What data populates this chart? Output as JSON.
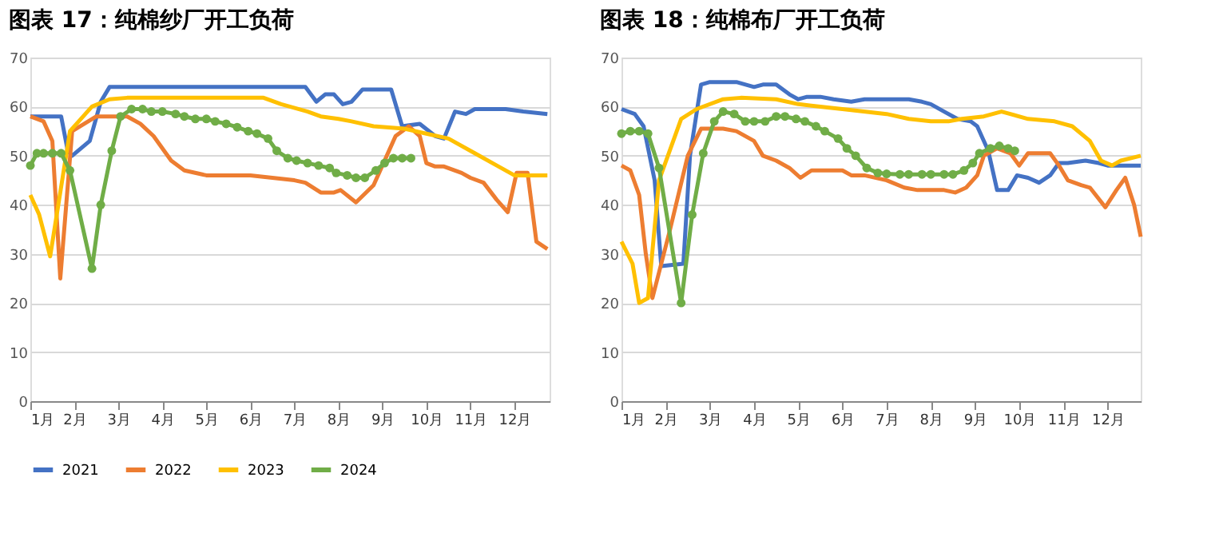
{
  "chart_data": [
    {
      "type": "line",
      "title": "图表 17：纯棉纱厂开工负荷",
      "xlim": [
        1,
        12.8
      ],
      "xticks": [
        {
          "value": 1,
          "label": "1月"
        },
        {
          "value": 2,
          "label": "2月"
        },
        {
          "value": 3,
          "label": "3月"
        },
        {
          "value": 4,
          "label": "4月"
        },
        {
          "value": 5,
          "label": "5月"
        },
        {
          "value": 6,
          "label": "6月"
        },
        {
          "value": 7,
          "label": "7月"
        },
        {
          "value": 8,
          "label": "8月"
        },
        {
          "value": 9,
          "label": "9月"
        },
        {
          "value": 10,
          "label": "10月"
        },
        {
          "value": 11,
          "label": "11月"
        },
        {
          "value": 12,
          "label": "12月"
        }
      ],
      "ylim": [
        0,
        70
      ],
      "yticks": [
        0,
        10,
        20,
        30,
        40,
        50,
        60,
        70
      ],
      "grid": "y",
      "legend": "bottom",
      "line_style": "solid",
      "series": [
        {
          "name": "2021",
          "color": "#4472c4",
          "x": [
            1,
            1.7,
            1.85,
            1.95,
            2.35,
            2.6,
            2.8,
            4,
            5,
            6,
            7.25,
            7.5,
            7.7,
            7.9,
            8.1,
            8.3,
            8.55,
            9.2,
            9.45,
            9.85,
            10.2,
            10.4,
            10.65,
            10.9,
            11.1,
            11.8,
            12.2,
            12.75
          ],
          "values": [
            58,
            58,
            51,
            50,
            53,
            61,
            64,
            64,
            64,
            64,
            64,
            61,
            62.5,
            62.5,
            60.5,
            61,
            63.5,
            63.5,
            56,
            56.5,
            54,
            53.5,
            59,
            58.5,
            59.5,
            59.5,
            59,
            58.5
          ]
        },
        {
          "name": "2022",
          "color": "#ed7d31",
          "x": [
            1,
            1.3,
            1.5,
            1.68,
            1.95,
            2.5,
            3.2,
            3.5,
            3.8,
            4.2,
            4.5,
            5,
            6,
            6.5,
            7,
            7.25,
            7.6,
            7.9,
            8.05,
            8.4,
            8.8,
            9.1,
            9.3,
            9.6,
            9.85,
            10,
            10.2,
            10.4,
            10.8,
            11,
            11.3,
            11.6,
            11.85,
            12.05,
            12.3,
            12.5,
            12.75
          ],
          "values": [
            58,
            57,
            53,
            25,
            55,
            58,
            58,
            56.5,
            54,
            49,
            47,
            46,
            46,
            45.5,
            45,
            44.5,
            42.5,
            42.5,
            43,
            40.5,
            44,
            50,
            54,
            56,
            54,
            48.5,
            47.8,
            47.8,
            46.5,
            45.5,
            44.5,
            41,
            38.5,
            46.5,
            46.5,
            32.5,
            31
          ]
        },
        {
          "name": "2023",
          "color": "#ffc000",
          "x": [
            1,
            1.2,
            1.45,
            1.9,
            2.4,
            2.8,
            3.2,
            6.3,
            6.7,
            7.3,
            7.6,
            8,
            8.3,
            8.8,
            9.5,
            10,
            10.5,
            11.1,
            11.6,
            12,
            12.3,
            12.75
          ],
          "values": [
            42,
            38,
            29.5,
            55,
            60,
            61.5,
            61.8,
            61.8,
            60.5,
            59,
            58,
            57.5,
            57,
            56,
            55.5,
            54.5,
            53.5,
            50.5,
            48,
            46,
            46,
            46
          ]
        },
        {
          "name": "2024",
          "color": "#70ad47",
          "marker": "circle",
          "x": [
            1,
            1.15,
            1.3,
            1.5,
            1.7,
            1.9,
            2.4,
            2.6,
            2.85,
            3.05,
            3.3,
            3.55,
            3.75,
            4,
            4.3,
            4.5,
            4.75,
            5,
            5.2,
            5.45,
            5.7,
            5.95,
            6.15,
            6.4,
            6.6,
            6.85,
            7.05,
            7.3,
            7.55,
            7.8,
            7.95,
            8.2,
            8.4,
            8.6,
            8.85,
            9.05,
            9.25,
            9.45,
            9.65
          ],
          "values": [
            48,
            50.5,
            50.5,
            50.5,
            50.5,
            47,
            27,
            40,
            51,
            58,
            59.5,
            59.5,
            59,
            59,
            58.5,
            58,
            57.5,
            57.5,
            57,
            56.5,
            55.8,
            55,
            54.5,
            53.5,
            51,
            49.5,
            49,
            48.5,
            48,
            47.5,
            46.5,
            46,
            45.5,
            45.5,
            47,
            48.5,
            49.5,
            49.5,
            49.5
          ]
        }
      ]
    },
    {
      "type": "line",
      "title": "图表 18：纯棉布厂开工负荷",
      "xlim": [
        1,
        12.75
      ],
      "xticks": [
        {
          "value": 1,
          "label": "1月"
        },
        {
          "value": 2,
          "label": "2月"
        },
        {
          "value": 3,
          "label": "3月"
        },
        {
          "value": 4,
          "label": "4月"
        },
        {
          "value": 5,
          "label": "5月"
        },
        {
          "value": 6,
          "label": "6月"
        },
        {
          "value": 7,
          "label": "7月"
        },
        {
          "value": 8,
          "label": "8月"
        },
        {
          "value": 9,
          "label": "9月"
        },
        {
          "value": 10,
          "label": "10月"
        },
        {
          "value": 11,
          "label": "11月"
        },
        {
          "value": 12,
          "label": "12月"
        }
      ],
      "ylim": [
        0,
        70
      ],
      "yticks": [
        0,
        10,
        20,
        30,
        40,
        50,
        60,
        70
      ],
      "grid": "y",
      "legend": "bottom",
      "line_style": "solid",
      "series": [
        {
          "name": "2021",
          "color": "#4472c4",
          "x": [
            1,
            1.3,
            1.5,
            1.75,
            1.9,
            2.4,
            2.55,
            2.8,
            3,
            3.6,
            4,
            4.2,
            4.5,
            4.8,
            5,
            5.2,
            5.5,
            5.8,
            6.2,
            6.5,
            7.5,
            7.8,
            8,
            8.3,
            8.6,
            8.9,
            9.05,
            9.3,
            9.5,
            9.75,
            9.95,
            10.2,
            10.45,
            10.7,
            10.9,
            11.1,
            11.5,
            11.8,
            12,
            12.75
          ],
          "values": [
            59.5,
            58.5,
            56,
            45,
            27.5,
            28,
            50,
            64.5,
            65,
            65,
            64,
            64.5,
            64.5,
            62.5,
            61.5,
            62,
            62,
            61.5,
            61,
            61.5,
            61.5,
            61,
            60.5,
            59,
            57.5,
            57,
            56,
            51,
            43,
            43,
            46,
            45.5,
            44.5,
            46,
            48.5,
            48.5,
            49,
            48.5,
            48,
            48
          ]
        },
        {
          "name": "2022",
          "color": "#ed7d31",
          "x": [
            1,
            1.2,
            1.4,
            1.55,
            1.7,
            2.1,
            2.5,
            2.8,
            3.3,
            3.6,
            4,
            4.2,
            4.5,
            4.8,
            5.05,
            5.3,
            6,
            6.2,
            6.5,
            7,
            7.4,
            7.7,
            8.3,
            8.55,
            8.8,
            9.05,
            9.2,
            9.5,
            9.8,
            10,
            10.2,
            10.7,
            10.9,
            11.1,
            11.4,
            11.6,
            11.95,
            12.2,
            12.4,
            12.6,
            12.75
          ],
          "values": [
            48,
            47,
            42,
            30,
            21,
            35,
            50,
            55.5,
            55.5,
            55,
            53,
            50,
            49,
            47.5,
            45.5,
            47,
            47,
            46,
            46,
            45,
            43.5,
            43,
            43,
            42.5,
            43.5,
            46,
            50,
            51.5,
            50.5,
            48,
            50.5,
            50.5,
            48,
            45,
            44,
            43.5,
            39.5,
            43,
            45.5,
            40,
            33.5
          ]
        },
        {
          "name": "2023",
          "color": "#ffc000",
          "x": [
            1,
            1.25,
            1.4,
            1.6,
            1.85,
            2.35,
            2.7,
            3.3,
            3.7,
            4.5,
            5,
            5.5,
            6,
            7,
            7.5,
            8,
            8.4,
            8.7,
            9.2,
            9.6,
            10.2,
            10.8,
            11.2,
            11.6,
            11.85,
            12.1,
            12.3,
            12.75
          ],
          "values": [
            32.5,
            28,
            20,
            21,
            45,
            57.5,
            59.5,
            61.5,
            61.8,
            61.5,
            60.5,
            60,
            59.5,
            58.5,
            57.5,
            57,
            57,
            57.5,
            58,
            59,
            57.5,
            57,
            56,
            53,
            49,
            48,
            49,
            50
          ]
        },
        {
          "name": "2024",
          "color": "#70ad47",
          "marker": "circle",
          "x": [
            1,
            1.2,
            1.4,
            1.6,
            1.85,
            2.35,
            2.6,
            2.85,
            3.1,
            3.3,
            3.55,
            3.8,
            4,
            4.25,
            4.5,
            4.7,
            4.95,
            5.15,
            5.4,
            5.6,
            5.9,
            6.1,
            6.3,
            6.55,
            6.8,
            7,
            7.3,
            7.5,
            7.8,
            8,
            8.3,
            8.5,
            8.75,
            8.95,
            9.1,
            9.35,
            9.55,
            9.75,
            9.9
          ],
          "values": [
            54.5,
            55,
            55,
            54.5,
            47.5,
            20,
            38,
            50.5,
            57,
            59,
            58.5,
            57,
            57,
            57,
            58,
            58,
            57.5,
            57,
            56,
            55,
            53.5,
            51.5,
            50,
            47.5,
            46.5,
            46.3,
            46.2,
            46.2,
            46.2,
            46.2,
            46.2,
            46.2,
            47,
            48.5,
            50.5,
            51.5,
            52,
            51.5,
            51
          ]
        }
      ]
    }
  ]
}
